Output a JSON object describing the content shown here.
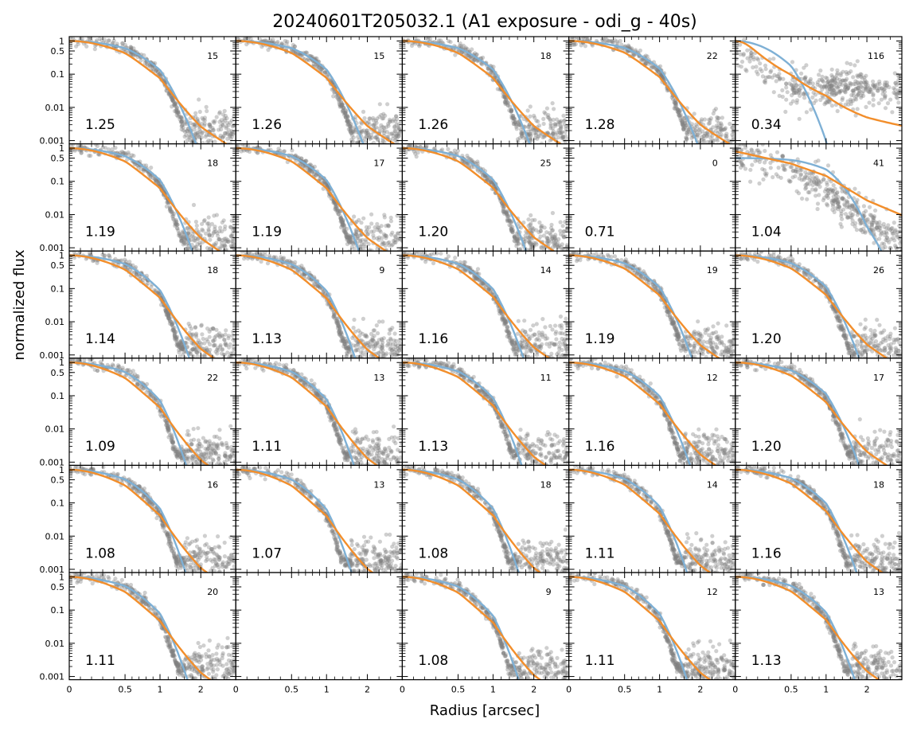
{
  "chart_data": {
    "type": "scatter",
    "title": "20240601T205032.1 (A1 exposure - odi_g - 40s)",
    "xlabel": "Radius [arcsec]",
    "ylabel": "normalized flux",
    "yscale": "log",
    "xscale": "stretched",
    "grid": false,
    "layout": {
      "rows": 6,
      "cols": 5
    },
    "x_ticks": [
      {
        "value": 0,
        "label": "0"
      },
      {
        "value": 0.5,
        "label": "0.5"
      },
      {
        "value": 1,
        "label": "1"
      },
      {
        "value": 2,
        "label": "2"
      }
    ],
    "y_ticks": [
      {
        "value": 1,
        "label": "1"
      },
      {
        "value": 0.5,
        "label": "0.5"
      },
      {
        "value": 0.1,
        "label": "0.1"
      },
      {
        "value": 0.01,
        "label": "0.01"
      },
      {
        "value": 0.001,
        "label": "0.001"
      }
    ],
    "colors": {
      "points": "#808080",
      "model_a": "#7eb0d5",
      "model_b": "#f28e2b"
    },
    "panels": [
      {
        "fwhm": "1.25",
        "count": "15"
      },
      {
        "fwhm": "1.26",
        "count": "15"
      },
      {
        "fwhm": "1.26",
        "count": "18"
      },
      {
        "fwhm": "1.28",
        "count": "22"
      },
      {
        "fwhm": "0.34",
        "count": "116"
      },
      {
        "fwhm": "1.19",
        "count": "18"
      },
      {
        "fwhm": "1.19",
        "count": "17"
      },
      {
        "fwhm": "1.20",
        "count": "25"
      },
      {
        "fwhm": "0.71",
        "count": "0"
      },
      {
        "fwhm": "1.04",
        "count": "41"
      },
      {
        "fwhm": "1.14",
        "count": "18"
      },
      {
        "fwhm": "1.13",
        "count": "9"
      },
      {
        "fwhm": "1.16",
        "count": "14"
      },
      {
        "fwhm": "1.19",
        "count": "19"
      },
      {
        "fwhm": "1.20",
        "count": "26"
      },
      {
        "fwhm": "1.09",
        "count": "22"
      },
      {
        "fwhm": "1.11",
        "count": "13"
      },
      {
        "fwhm": "1.13",
        "count": "11"
      },
      {
        "fwhm": "1.16",
        "count": "12"
      },
      {
        "fwhm": "1.20",
        "count": "17"
      },
      {
        "fwhm": "1.08",
        "count": "16"
      },
      {
        "fwhm": "1.07",
        "count": "13"
      },
      {
        "fwhm": "1.08",
        "count": "18"
      },
      {
        "fwhm": "1.11",
        "count": "14"
      },
      {
        "fwhm": "1.16",
        "count": "18"
      },
      {
        "fwhm": "1.11",
        "count": "20"
      },
      {
        "fwhm": "",
        "count": ""
      },
      {
        "fwhm": "1.08",
        "count": "9"
      },
      {
        "fwhm": "1.11",
        "count": "12"
      },
      {
        "fwhm": "1.13",
        "count": "13"
      }
    ]
  }
}
